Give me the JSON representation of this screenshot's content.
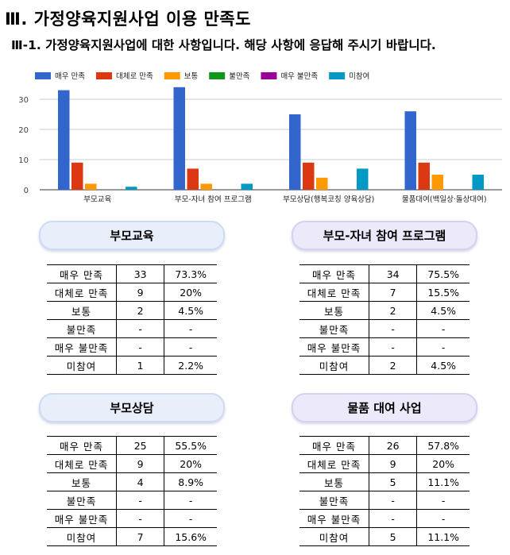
{
  "header": {
    "title": "Ⅲ. 가정양육지원사업 이용 만족도",
    "subtitle": "Ⅲ-1. 가정양육지원사업에 대한 사항입니다. 해당 사항에 응답해 주시기 바랍니다."
  },
  "chart_data": {
    "type": "bar",
    "categories": [
      "부모교육",
      "부모-자녀 참여 프로그램",
      "부모상담(행복코칭 양육상담)",
      "물품대여(백일상·돌상대여)"
    ],
    "series": [
      {
        "name": "매우 만족",
        "color": "#3366cc",
        "values": [
          33,
          34,
          25,
          26
        ]
      },
      {
        "name": "대체로 만족",
        "color": "#dc3912",
        "values": [
          9,
          7,
          9,
          9
        ]
      },
      {
        "name": "보통",
        "color": "#ff9900",
        "values": [
          2,
          2,
          4,
          5
        ]
      },
      {
        "name": "불만족",
        "color": "#109618",
        "values": [
          0,
          0,
          0,
          0
        ]
      },
      {
        "name": "매우 불만족",
        "color": "#990099",
        "values": [
          0,
          0,
          0,
          0
        ]
      },
      {
        "name": "미참여",
        "color": "#0099c6",
        "values": [
          1,
          2,
          7,
          5
        ]
      }
    ],
    "ylim": [
      0,
      35
    ],
    "yticks": [
      0,
      10,
      20,
      30
    ],
    "grid": true,
    "legend": "top-left"
  },
  "sections": [
    {
      "title": "부모교육",
      "rows": [
        {
          "label": "매우 만족",
          "count": "33",
          "pct": "73.3%"
        },
        {
          "label": "대체로 만족",
          "count": "9",
          "pct": "20%"
        },
        {
          "label": "보통",
          "count": "2",
          "pct": "4.5%"
        },
        {
          "label": "불만족",
          "count": "-",
          "pct": "-"
        },
        {
          "label": "매우 불만족",
          "count": "-",
          "pct": "-"
        },
        {
          "label": "미참여",
          "count": "1",
          "pct": "2.2%"
        }
      ]
    },
    {
      "title": "부모-자녀 참여 프로그램",
      "rows": [
        {
          "label": "매우 만족",
          "count": "34",
          "pct": "75.5%"
        },
        {
          "label": "대체로 만족",
          "count": "7",
          "pct": "15.5%"
        },
        {
          "label": "보통",
          "count": "2",
          "pct": "4.5%"
        },
        {
          "label": "불만족",
          "count": "-",
          "pct": "-"
        },
        {
          "label": "매우 불만족",
          "count": "-",
          "pct": "-"
        },
        {
          "label": "미참여",
          "count": "2",
          "pct": "4.5%"
        }
      ]
    },
    {
      "title": "부모상담",
      "rows": [
        {
          "label": "매우 만족",
          "count": "25",
          "pct": "55.5%"
        },
        {
          "label": "대체로 만족",
          "count": "9",
          "pct": "20%"
        },
        {
          "label": "보통",
          "count": "4",
          "pct": "8.9%"
        },
        {
          "label": "불만족",
          "count": "-",
          "pct": "-"
        },
        {
          "label": "매우 불만족",
          "count": "-",
          "pct": "-"
        },
        {
          "label": "미참여",
          "count": "7",
          "pct": "15.6%"
        }
      ]
    },
    {
      "title": "물품 대여 사업",
      "rows": [
        {
          "label": "매우 만족",
          "count": "26",
          "pct": "57.8%"
        },
        {
          "label": "대체로 만족",
          "count": "9",
          "pct": "20%"
        },
        {
          "label": "보통",
          "count": "5",
          "pct": "11.1%"
        },
        {
          "label": "불만족",
          "count": "-",
          "pct": "-"
        },
        {
          "label": "매우 불만족",
          "count": "-",
          "pct": "-"
        },
        {
          "label": "미참여",
          "count": "5",
          "pct": "11.1%"
        }
      ]
    }
  ]
}
